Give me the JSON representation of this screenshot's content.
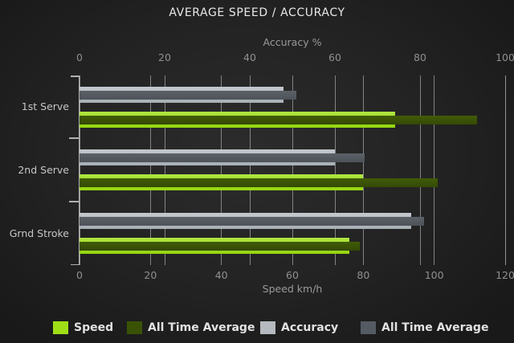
{
  "title": "AVERAGE SPEED / ACCURACY",
  "chart_data": {
    "type": "bar",
    "orientation": "horizontal",
    "title": "AVERAGE SPEED / ACCURACY",
    "categories": [
      "1st Serve",
      "2nd Serve",
      "Grnd Stroke"
    ],
    "series": [
      {
        "name": "Speed",
        "axis": "speed",
        "role": "back",
        "color_top": "#b0e642",
        "color_bottom": "#94d60e",
        "values": [
          89,
          80,
          76
        ]
      },
      {
        "name": "All Time Average",
        "axis": "speed",
        "role": "front",
        "color_top": "#415c07",
        "color_bottom": "#344a05",
        "values": [
          112,
          101,
          79
        ]
      },
      {
        "name": "Accuracy",
        "axis": "accuracy",
        "role": "back",
        "color_top": "#c3c9ce",
        "color_bottom": "#a8afb5",
        "values": [
          48,
          60,
          78
        ]
      },
      {
        "name": "All Time Average",
        "axis": "accuracy",
        "role": "front",
        "color_top": "#5b6167",
        "color_bottom": "#4d5359",
        "values": [
          51,
          67,
          81
        ]
      }
    ],
    "axes": {
      "top": {
        "label": "Accuracy %",
        "min": 0,
        "max": 100,
        "ticks": [
          0,
          20,
          40,
          60,
          80,
          100
        ]
      },
      "bottom": {
        "label": "Speed km/h",
        "min": 0,
        "max": 120,
        "ticks": [
          0,
          20,
          40,
          60,
          80,
          100,
          120
        ]
      }
    },
    "grid": true,
    "legend_position": "bottom"
  },
  "legend": {
    "items": [
      {
        "label": "Speed",
        "color": "#9fde17"
      },
      {
        "label": "All Time Average",
        "color": "#3a5206"
      },
      {
        "label": "Accuracy",
        "color": "#b4bac0"
      },
      {
        "label": "All Time Average",
        "color": "#545b62"
      }
    ]
  },
  "colors": {
    "background_center": "#2c2c2c",
    "background_edge": "#191919",
    "gridline": "#989898",
    "tick_text": "#8f8f8f",
    "category_text": "#c6c6c6",
    "title_text": "#e8e8e8"
  }
}
